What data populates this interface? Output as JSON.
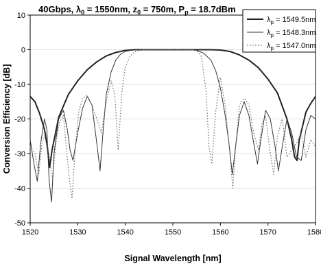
{
  "chart_data": {
    "type": "line",
    "title_parts": [
      "40Gbps, λ",
      "0",
      " = 1550nm, z",
      "0",
      " = 750m, P",
      "p",
      " = 18.7dBm"
    ],
    "xlabel": "Signal Wavelength [nm]",
    "ylabel": "Conversion Efficiency [dB]",
    "xlim": [
      1520,
      1580
    ],
    "ylim": [
      -50,
      10
    ],
    "xticks": [
      1520,
      1530,
      1540,
      1550,
      1560,
      1570,
      1580
    ],
    "yticks": [
      10,
      0,
      -10,
      -20,
      -30,
      -40,
      -50
    ],
    "legend_position": "top-right",
    "legend": [
      {
        "sym": "λ",
        "sub": "p",
        "text": " = 1549.5nm",
        "color": "#222222",
        "style": "thick"
      },
      {
        "sym": "λ",
        "sub": "p",
        "text": " = 1548.3nm",
        "color": "#333333",
        "style": "thin"
      },
      {
        "sym": "λ",
        "sub": "p",
        "text": " = 1547.0nm",
        "color": "#666666",
        "style": "dotted"
      }
    ],
    "series": [
      {
        "style": "thick",
        "x": [
          1520,
          1521,
          1522,
          1523,
          1523.6,
          1524.1,
          1524.6,
          1526,
          1528,
          1530,
          1532,
          1534,
          1536,
          1538,
          1540,
          1542,
          1545,
          1548,
          1550,
          1552,
          1555,
          1558,
          1560,
          1562,
          1564,
          1566,
          1568,
          1570,
          1572,
          1574,
          1575,
          1575.6,
          1576.1,
          1576.6,
          1578,
          1579,
          1580
        ],
        "y": [
          -13.5,
          -15,
          -18.5,
          -23,
          -28,
          -34,
          -29,
          -19.5,
          -13,
          -9,
          -5.8,
          -3.5,
          -1.8,
          -0.8,
          -0.2,
          0,
          0,
          0,
          0,
          0,
          0,
          0,
          -0.1,
          -0.5,
          -1.5,
          -3,
          -5.2,
          -8.5,
          -12.5,
          -20,
          -26,
          -31,
          -32,
          -26,
          -18,
          -15.5,
          -13.5
        ]
      },
      {
        "style": "thin",
        "x": [
          1520,
          1520.8,
          1521.5,
          1522.2,
          1523,
          1523.5,
          1524,
          1524.5,
          1525,
          1526,
          1527,
          1527.8,
          1528.4,
          1529,
          1530,
          1531,
          1532,
          1533,
          1534,
          1534.7,
          1535.3,
          1536,
          1537,
          1538,
          1539,
          1540,
          1541,
          1542,
          1543,
          1544,
          1546,
          1548,
          1550,
          1552,
          1553.5,
          1555,
          1556.5,
          1558,
          1559,
          1560,
          1561,
          1561.8,
          1562.5,
          1563.2,
          1564,
          1565,
          1566,
          1567,
          1567.8,
          1568.5,
          1569.5,
          1570.5,
          1571.5,
          1572.2,
          1573,
          1574,
          1575,
          1576,
          1577,
          1578,
          1579,
          1580
        ],
        "y": [
          -26,
          -33,
          -38,
          -27,
          -20,
          -23,
          -38,
          -44,
          -30,
          -20,
          -17.5,
          -23,
          -29,
          -32,
          -24,
          -17,
          -13.5,
          -16,
          -27,
          -35,
          -24,
          -13,
          -6.5,
          -3,
          -1.3,
          -0.5,
          -0.2,
          -0.1,
          -0.05,
          0,
          0,
          0,
          0,
          0,
          0,
          -0.2,
          -1,
          -3,
          -6,
          -11,
          -19,
          -27,
          -36,
          -28,
          -19,
          -15,
          -19,
          -27,
          -33,
          -26,
          -17.5,
          -20,
          -28,
          -35,
          -28,
          -20,
          -24,
          -31,
          -32,
          -23,
          -19,
          -20
        ]
      },
      {
        "style": "dotted",
        "x": [
          1520,
          1521,
          1521.8,
          1522.5,
          1523.3,
          1524,
          1524.7,
          1525.5,
          1526.2,
          1527,
          1527.7,
          1528.3,
          1528.8,
          1529.4,
          1530.2,
          1531,
          1532,
          1533,
          1534,
          1535,
          1536,
          1537,
          1537.8,
          1538.5,
          1539.3,
          1540,
          1541,
          1542,
          1543,
          1544,
          1546,
          1548,
          1550,
          1552,
          1553.5,
          1555,
          1556,
          1557,
          1557.6,
          1558.2,
          1559,
          1560,
          1561,
          1562,
          1562.6,
          1563.2,
          1564,
          1565,
          1566,
          1567,
          1568,
          1568.8,
          1569.5,
          1570.3,
          1571.2,
          1572,
          1573,
          1574,
          1575,
          1576,
          1577,
          1578,
          1579,
          1580
        ],
        "y": [
          -28,
          -30,
          -36,
          -27,
          -24,
          -31,
          -37,
          -26,
          -21,
          -19,
          -30,
          -38,
          -43,
          -30,
          -18,
          -14,
          -13.2,
          -16,
          -20,
          -24,
          -15,
          -9,
          -13,
          -29,
          -12,
          -5,
          -1.8,
          -0.6,
          -0.2,
          -0.05,
          0,
          0,
          0,
          0,
          0,
          -0.2,
          -2,
          -12,
          -28,
          -33,
          -18,
          -8,
          -16,
          -30,
          -40,
          -28,
          -16,
          -14,
          -16,
          -24,
          -29,
          -21,
          -19,
          -28,
          -36,
          -25,
          -20,
          -31,
          -29,
          -27,
          -24,
          -31,
          -26,
          -28
        ]
      }
    ]
  }
}
